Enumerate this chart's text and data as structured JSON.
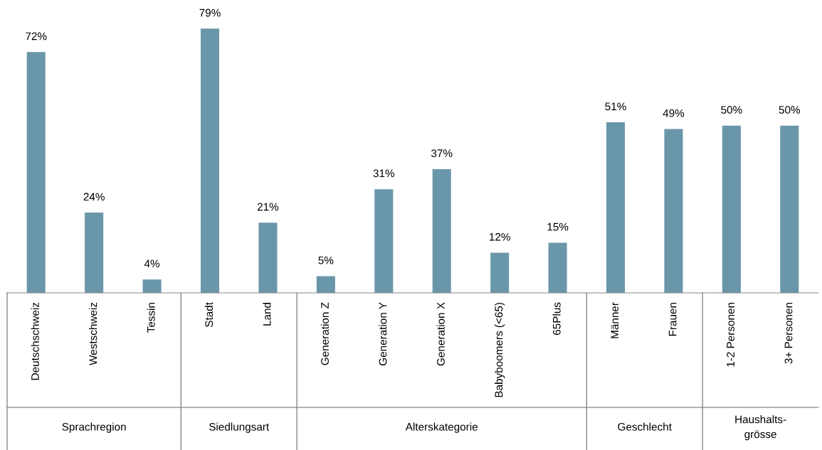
{
  "chart_data": {
    "type": "bar",
    "categories": [
      "Deutschschweiz",
      "Westschweiz",
      "Tessin",
      "Stadt",
      "Land",
      "Generation Z",
      "Generation Y",
      "Generation X",
      "Babyboomers (<65)",
      "65Plus",
      "Männer",
      "Frauen",
      "1-2 Personen",
      "3+ Personen"
    ],
    "values": [
      72,
      24,
      4,
      79,
      21,
      5,
      31,
      37,
      12,
      15,
      51,
      49,
      50,
      50
    ],
    "value_labels": [
      "72%",
      "24%",
      "4%",
      "79%",
      "21%",
      "5%",
      "31%",
      "37%",
      "12%",
      "15%",
      "51%",
      "49%",
      "50%",
      "50%"
    ],
    "color": "#6a96aa",
    "annotations": [
      "Sprachregion",
      "Siedlungsart",
      "Alterskategorie",
      "Geschlecht",
      "Haushalts-\ngrösse"
    ]
  }
}
